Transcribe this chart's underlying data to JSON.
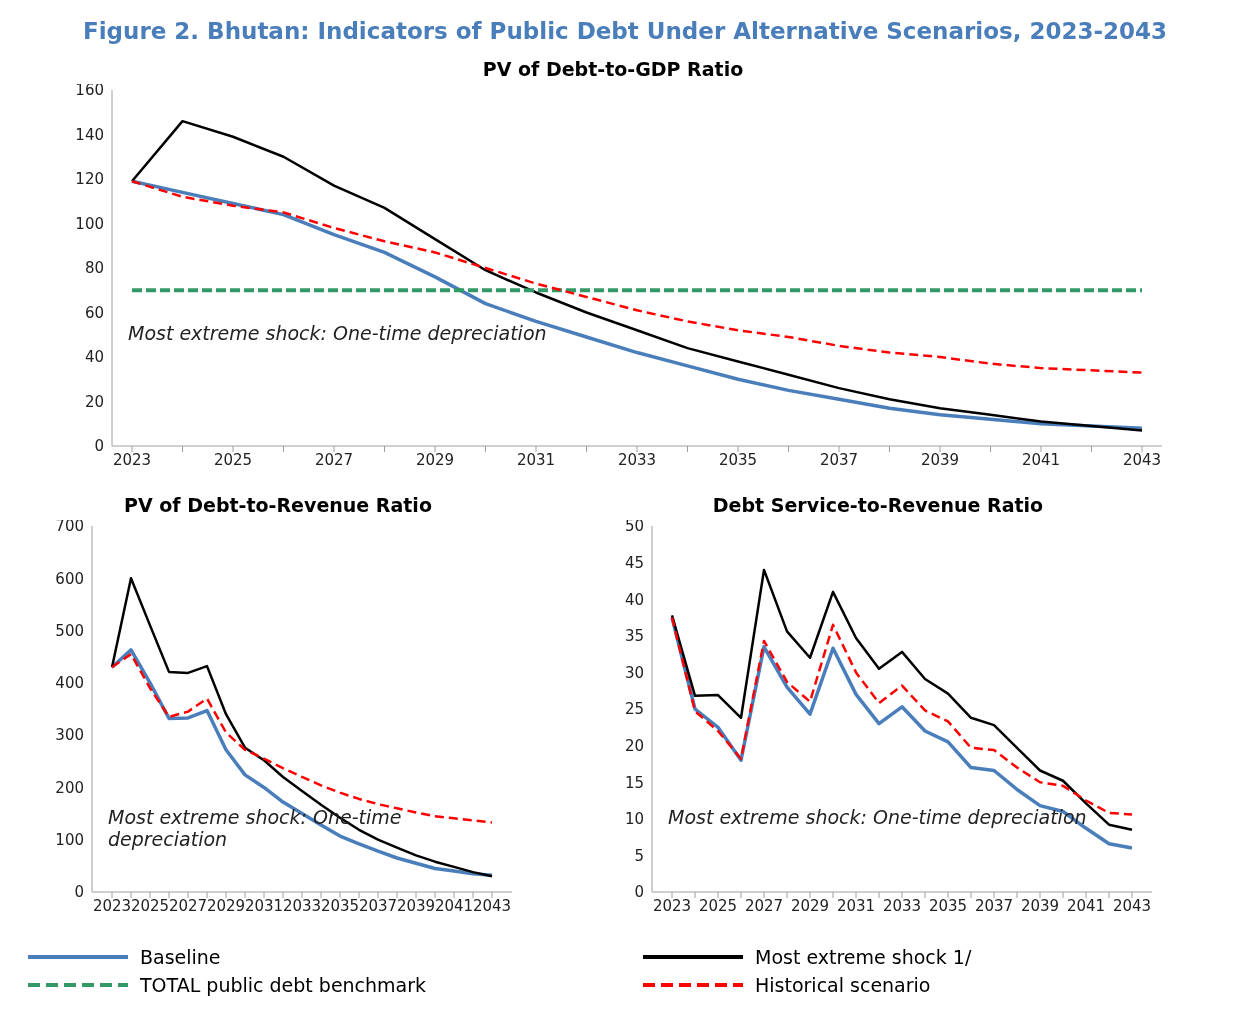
{
  "chart_data": [
    {
      "type": "line",
      "title": "Figure 2. Bhutan: Indicators of Public Debt Under Alternative Scenarios, 2023-2043",
      "subtitle": "PV of Debt-to-GDP Ratio",
      "categories": [
        "2023",
        null,
        "2025",
        null,
        "2027",
        null,
        "2029",
        null,
        "2031",
        null,
        "2033",
        null,
        "2035",
        null,
        "2037",
        null,
        "2039",
        null,
        "2041",
        null,
        "2043"
      ],
      "series": [
        {
          "name": "Baseline",
          "color": "#4a7ebb",
          "line_style": "solid",
          "values": [
            119,
            114,
            109,
            104,
            95,
            87,
            76,
            64,
            56,
            49,
            42,
            36,
            30,
            25,
            21,
            17,
            14,
            12,
            10,
            9,
            8
          ]
        },
        {
          "name": "Most extreme shock 1/",
          "color": "#000000",
          "line_style": "solid",
          "values": [
            119,
            146,
            139,
            130,
            117,
            107,
            93,
            79,
            69,
            60,
            52,
            44,
            38,
            32,
            26,
            21,
            17,
            14,
            11,
            9,
            7
          ]
        },
        {
          "name": "TOTAL public debt benchmark",
          "color": "#339966",
          "line_style": "dashed",
          "values": [
            70,
            70,
            70,
            70,
            70,
            70,
            70,
            70,
            70,
            70,
            70,
            70,
            70,
            70,
            70,
            70,
            70,
            70,
            70,
            70,
            70
          ]
        },
        {
          "name": "Historical scenario",
          "color": "#ff0000",
          "line_style": "dashed",
          "values": [
            119,
            112,
            108,
            105,
            98,
            92,
            87,
            80,
            73,
            67,
            61,
            56,
            52,
            49,
            45,
            42,
            40,
            37,
            35,
            34,
            33
          ]
        }
      ],
      "ylim": [
        0,
        160
      ],
      "yticks": [
        0,
        20,
        40,
        60,
        80,
        100,
        120,
        140,
        160
      ],
      "legend": "bottom",
      "annotations": [
        "Most extreme shock: One-time depreciation"
      ]
    },
    {
      "type": "line",
      "title": "PV of Debt-to-Revenue Ratio",
      "categories": [
        "2023",
        null,
        "2025",
        null,
        "2027",
        null,
        "2029",
        null,
        "2031",
        null,
        "2033",
        null,
        "2035",
        null,
        "2037",
        null,
        "2039",
        null,
        "2041",
        null,
        "2043"
      ],
      "series": [
        {
          "color": "#4a7ebb",
          "line_style": "solid",
          "values": [
            430,
            463,
            400,
            332,
            333,
            347,
            272,
            224,
            200,
            172,
            150,
            128,
            107,
            92,
            78,
            65,
            55,
            45,
            40,
            35,
            32
          ]
        },
        {
          "color": "#000000",
          "line_style": "solid",
          "values": [
            430,
            600,
            510,
            421,
            419,
            432,
            340,
            276,
            252,
            220,
            193,
            167,
            142,
            119,
            100,
            85,
            70,
            58,
            48,
            38,
            30
          ]
        },
        {
          "color": "#ff0000",
          "line_style": "dashed",
          "values": [
            430,
            455,
            390,
            335,
            345,
            370,
            305,
            272,
            255,
            237,
            220,
            204,
            190,
            178,
            168,
            160,
            152,
            145,
            141,
            137,
            133
          ]
        }
      ],
      "ylim": [
        0,
        700
      ],
      "yticks": [
        0,
        100,
        200,
        300,
        400,
        500,
        600,
        700
      ],
      "annotations": [
        "Most extreme shock: One-time depreciation"
      ]
    },
    {
      "type": "line",
      "title": "Debt Service-to-Revenue Ratio",
      "categories": [
        "2023",
        null,
        "2025",
        null,
        "2027",
        null,
        "2029",
        null,
        "2031",
        null,
        "2033",
        null,
        "2035",
        null,
        "2037",
        null,
        "2039",
        null,
        "2041",
        null,
        "2043"
      ],
      "series": [
        {
          "color": "#4a7ebb",
          "line_style": "solid",
          "values": [
            37.5,
            25,
            22.5,
            18,
            33.5,
            28,
            24.3,
            33.3,
            27,
            23,
            25.3,
            22,
            20.5,
            17,
            16.6,
            14,
            11.8,
            11,
            8.7,
            6.6,
            6
          ]
        },
        {
          "color": "#000000",
          "line_style": "solid",
          "values": [
            37.8,
            26.8,
            26.9,
            23.8,
            44,
            35.6,
            32,
            41,
            34.7,
            30.5,
            32.8,
            29.1,
            27.1,
            23.8,
            22.8,
            19.7,
            16.6,
            15.2,
            12.1,
            9.2,
            8.5
          ]
        },
        {
          "color": "#ff0000",
          "line_style": "dashed",
          "values": [
            37.5,
            24.7,
            22,
            18.2,
            34.3,
            28.7,
            26,
            36.5,
            30,
            25.8,
            28.2,
            24.8,
            23.3,
            19.7,
            19.4,
            17,
            15,
            14.5,
            12.5,
            10.8,
            10.6
          ]
        }
      ],
      "ylim": [
        0,
        50
      ],
      "yticks": [
        0,
        5,
        10,
        15,
        20,
        25,
        30,
        35,
        40,
        45,
        50
      ],
      "annotations": [
        "Most extreme shock: One-time depreciation"
      ]
    }
  ]
}
